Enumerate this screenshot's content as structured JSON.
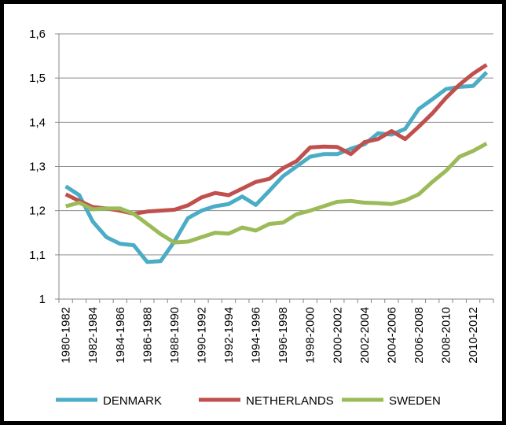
{
  "chart_data": {
    "type": "line",
    "categories": [
      "1980-1982",
      null,
      "1982-1984",
      null,
      "1984-1986",
      null,
      "1986-1988",
      null,
      "1988-1990",
      null,
      "1990-1992",
      null,
      "1992-1994",
      null,
      "1994-1996",
      null,
      "1996-1998",
      null,
      "1998-2000",
      null,
      "2000-2002",
      null,
      "2002-2004",
      null,
      "2004-2006",
      null,
      "2006-2008",
      null,
      "2008-2010",
      null,
      "2010-2012",
      null
    ],
    "series": [
      {
        "name": "DENMARK",
        "color": "#4bacc6",
        "values": [
          1.255,
          1.235,
          1.175,
          1.14,
          1.125,
          1.122,
          1.084,
          1.086,
          1.13,
          1.183,
          1.2,
          1.21,
          1.215,
          1.232,
          1.213,
          1.245,
          1.278,
          1.3,
          1.322,
          1.328,
          1.328,
          1.34,
          1.35,
          1.375,
          1.372,
          1.385,
          1.43,
          1.452,
          1.475,
          1.48,
          1.482,
          1.513
        ]
      },
      {
        "name": "NETHERLANDS",
        "color": "#c0504d",
        "values": [
          1.237,
          1.222,
          1.208,
          1.205,
          1.2,
          1.193,
          1.198,
          1.2,
          1.202,
          1.212,
          1.23,
          1.24,
          1.235,
          1.25,
          1.265,
          1.272,
          1.296,
          1.312,
          1.343,
          1.345,
          1.344,
          1.328,
          1.355,
          1.362,
          1.38,
          1.362,
          1.39,
          1.42,
          1.455,
          1.485,
          1.51,
          1.53
        ]
      },
      {
        "name": "SWEDEN",
        "color": "#9bbb59",
        "values": [
          1.21,
          1.218,
          1.203,
          1.205,
          1.205,
          1.193,
          1.17,
          1.147,
          1.128,
          1.13,
          1.14,
          1.15,
          1.148,
          1.162,
          1.155,
          1.17,
          1.173,
          1.192,
          1.2,
          1.21,
          1.22,
          1.222,
          1.218,
          1.217,
          1.215,
          1.223,
          1.237,
          1.265,
          1.29,
          1.322,
          1.335,
          1.352
        ]
      }
    ],
    "ylim": [
      1,
      1.6
    ],
    "yticks": [
      1,
      {
        "value": 1.1,
        "label": "1,1"
      },
      {
        "value": 1.2,
        "label": "1,2"
      },
      {
        "value": 1.3,
        "label": "1,3"
      },
      {
        "value": 1.4,
        "label": "1,4"
      },
      {
        "value": 1.5,
        "label": "1,5"
      },
      {
        "value": 1.6,
        "label": "1,6"
      }
    ],
    "grid": true,
    "legend": "bottom"
  }
}
